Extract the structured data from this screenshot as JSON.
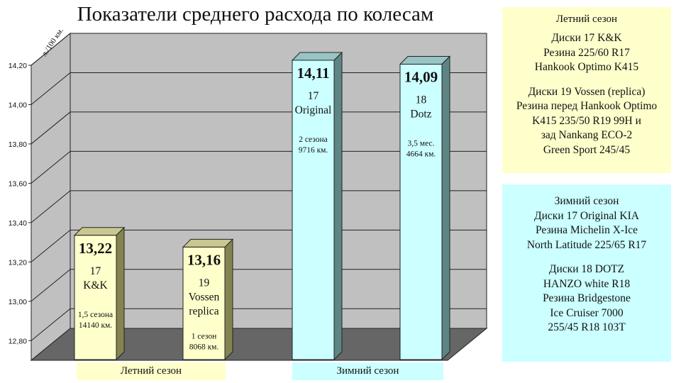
{
  "title": "Показатели среднего расхода по колесам",
  "chart_data": {
    "type": "bar",
    "title": "Показатели среднего расхода по колесам",
    "ylabel": "л./100 км.",
    "ylim": [
      12.7,
      14.2
    ],
    "yticks": [
      "12,80",
      "13,00",
      "13,20",
      "13,40",
      "13,60",
      "13,80",
      "14,00",
      "14,20"
    ],
    "ytick_values": [
      12.8,
      13.0,
      13.2,
      13.4,
      13.6,
      13.8,
      14.0,
      14.2
    ],
    "bars": [
      {
        "value": 13.22,
        "value_label": "13,22",
        "label_lines": [
          "17",
          "K&K"
        ],
        "note_lines": [
          "1,5 сезона",
          "14140 км."
        ],
        "season": "summer"
      },
      {
        "value": 13.16,
        "value_label": "13,16",
        "label_lines": [
          "19",
          "Vossen",
          "replica"
        ],
        "note_lines": [
          "1 сезон",
          "8068 км."
        ],
        "season": "summer"
      },
      {
        "value": 14.11,
        "value_label": "14,11",
        "label_lines": [
          "17",
          "Original"
        ],
        "note_lines": [
          "2 сезона",
          "9716 км."
        ],
        "season": "winter"
      },
      {
        "value": 14.09,
        "value_label": "14,09",
        "label_lines": [
          "18",
          "Dotz"
        ],
        "note_lines": [
          "3,5 мес.",
          "4664 км."
        ],
        "season": "winter"
      }
    ],
    "groups": [
      "Летний сезон",
      "Зимний сезон"
    ],
    "grid": true,
    "colors": {
      "summer_front": "#ffffcc",
      "summer_side": "#848450",
      "summer_top": "#c8c890",
      "winter_front": "#ccffff",
      "winter_side": "#5f8484",
      "winter_top": "#98c4c4",
      "wall": "#c0c0c0",
      "floor": "#666666"
    }
  },
  "legend_summer": {
    "title": "Летний сезон",
    "block1": [
      "Диски 17 K&K",
      "Резина 225/60 R17",
      "Hankook Optimo K415"
    ],
    "block2": [
      "Диски 19 Vossen (replica)",
      "Резина перед Hankook Optimo",
      "K415 235/50 R19 99H и",
      "зад Nankang ECO-2",
      "Green Sport 245/45"
    ]
  },
  "legend_winter": {
    "title": "Зимний сезон",
    "block1": [
      "Диски 17 Original KIA",
      "Резина Michelin X-Ice",
      "North Latitude  225/65 R17"
    ],
    "block2": [
      "Диски 18 DOTZ",
      "HANZO white R18",
      "Резина Bridgestone",
      "Ice Cruiser 7000",
      "255/45 R18 103T"
    ]
  },
  "group_labels": {
    "summer": "Летний сезон",
    "winter": "Зимний сезон"
  }
}
